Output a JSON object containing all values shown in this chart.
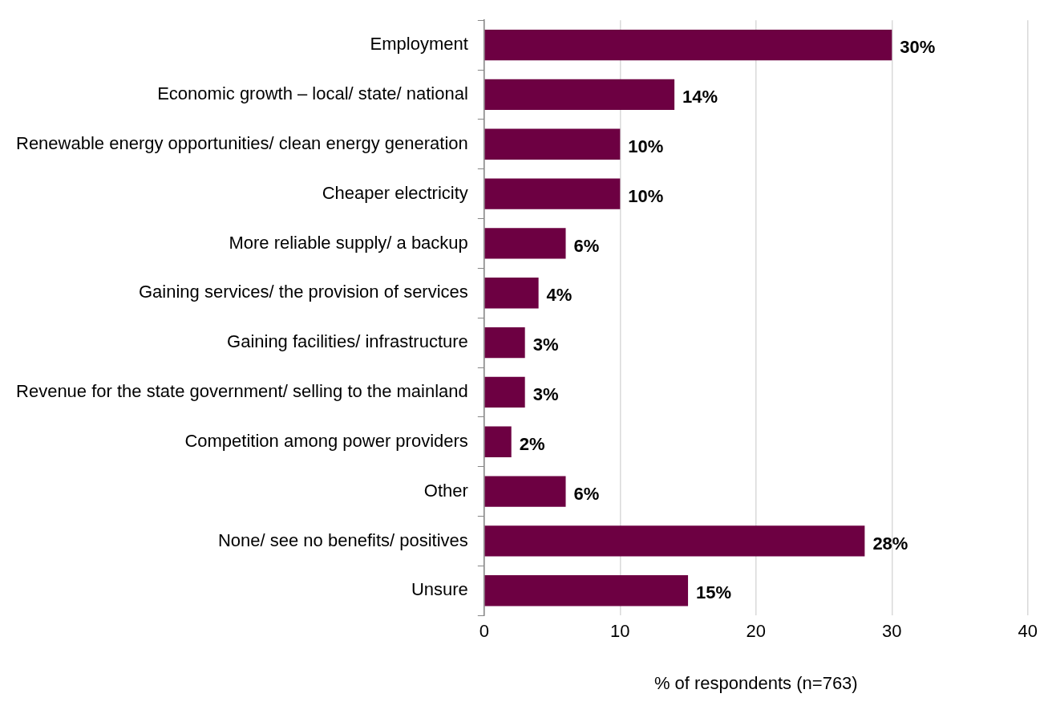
{
  "chart_data": {
    "type": "bar",
    "orientation": "horizontal",
    "xlabel": "% of respondents (n=763)",
    "categories": [
      "Employment",
      "Economic growth – local/ state/ national",
      "Renewable energy opportunities/ clean energy generation",
      "Cheaper electricity",
      "More reliable supply/ a backup",
      "Gaining services/ the provision of services",
      "Gaining facilities/ infrastructure",
      "Revenue for the state government/ selling to the mainland",
      "Competition among power providers",
      "Other",
      "None/ see no benefits/ positives",
      "Unsure"
    ],
    "values": [
      30,
      14,
      10,
      10,
      6,
      4,
      3,
      3,
      2,
      6,
      28,
      15
    ],
    "value_labels": [
      "30%",
      "14%",
      "10%",
      "10%",
      "6%",
      "4%",
      "3%",
      "3%",
      "2%",
      "6%",
      "28%",
      "15%"
    ],
    "color": "#6d0042",
    "xlim": [
      0,
      40
    ],
    "xticks": [
      0,
      10,
      20,
      30,
      40
    ],
    "grid": "x",
    "legend": false
  }
}
